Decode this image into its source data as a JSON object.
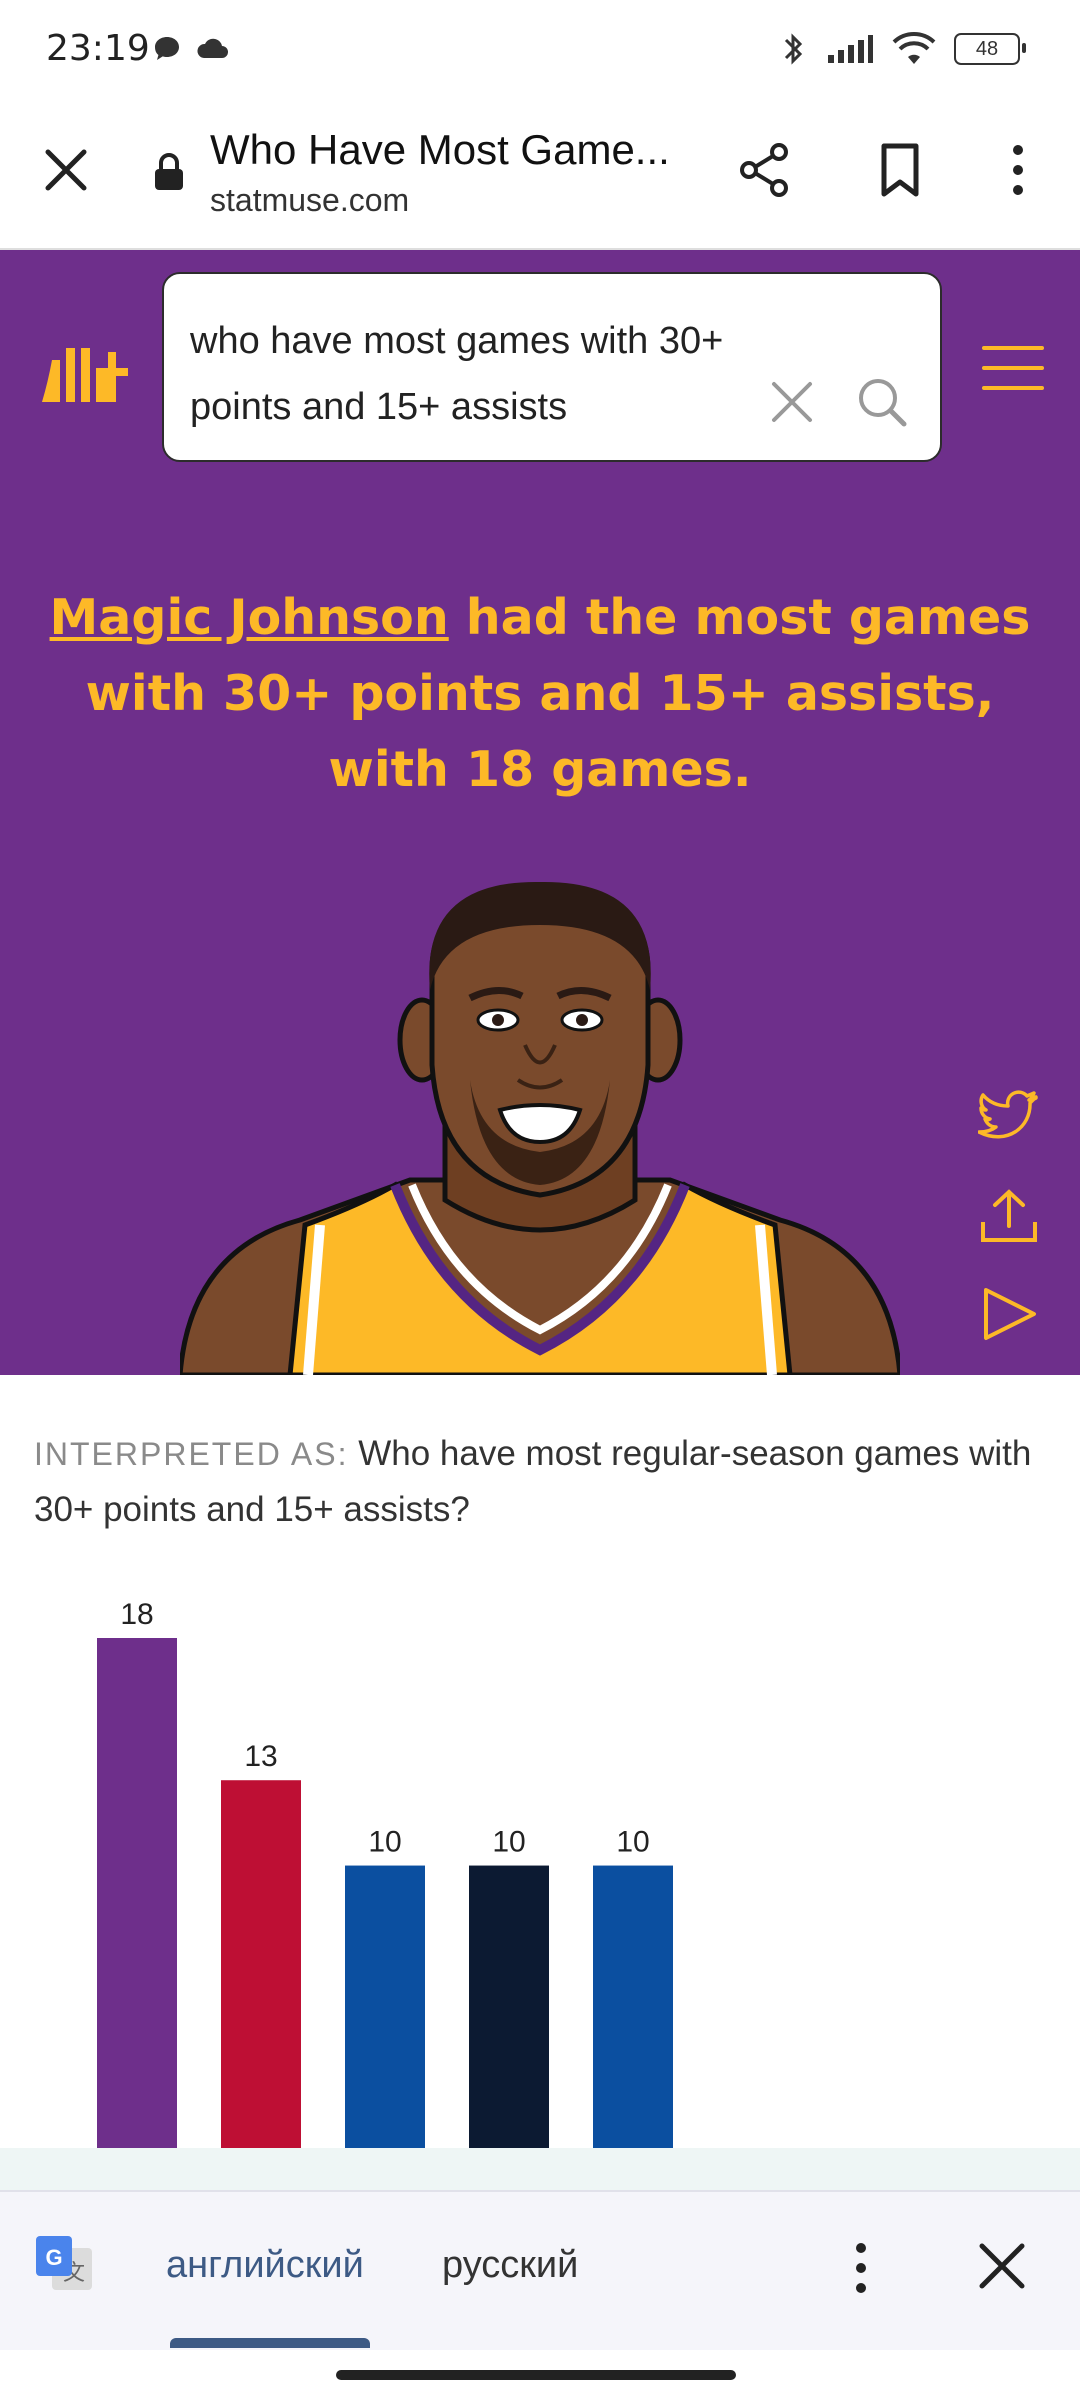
{
  "status_bar": {
    "time": "23:19",
    "battery": "48"
  },
  "browser": {
    "title": "Who Have Most Game...",
    "url": "statmuse.com"
  },
  "search": {
    "query": "who have most games with 30+ points and 15+ assists"
  },
  "answer": {
    "player_link": "Magic Johnson",
    "text": " had the most games with 30+ points and 15+ assists, with 18 games."
  },
  "interpreted": {
    "label": "INTERPRETED AS:",
    "text": "Who have most regular-season games with 30+ points and 15+ assists?"
  },
  "chart_data": {
    "type": "bar",
    "values": [
      18,
      13,
      10,
      10,
      10
    ],
    "colors": [
      "#6e2f8b",
      "#be0f34",
      "#0b4fa0",
      "#0c1a32",
      "#0b4fa0"
    ]
  },
  "translate": {
    "source_lang": "английский",
    "target_lang": "русский"
  },
  "colors": {
    "hero_bg": "#6e2f8b",
    "accent": "#fdb927"
  }
}
